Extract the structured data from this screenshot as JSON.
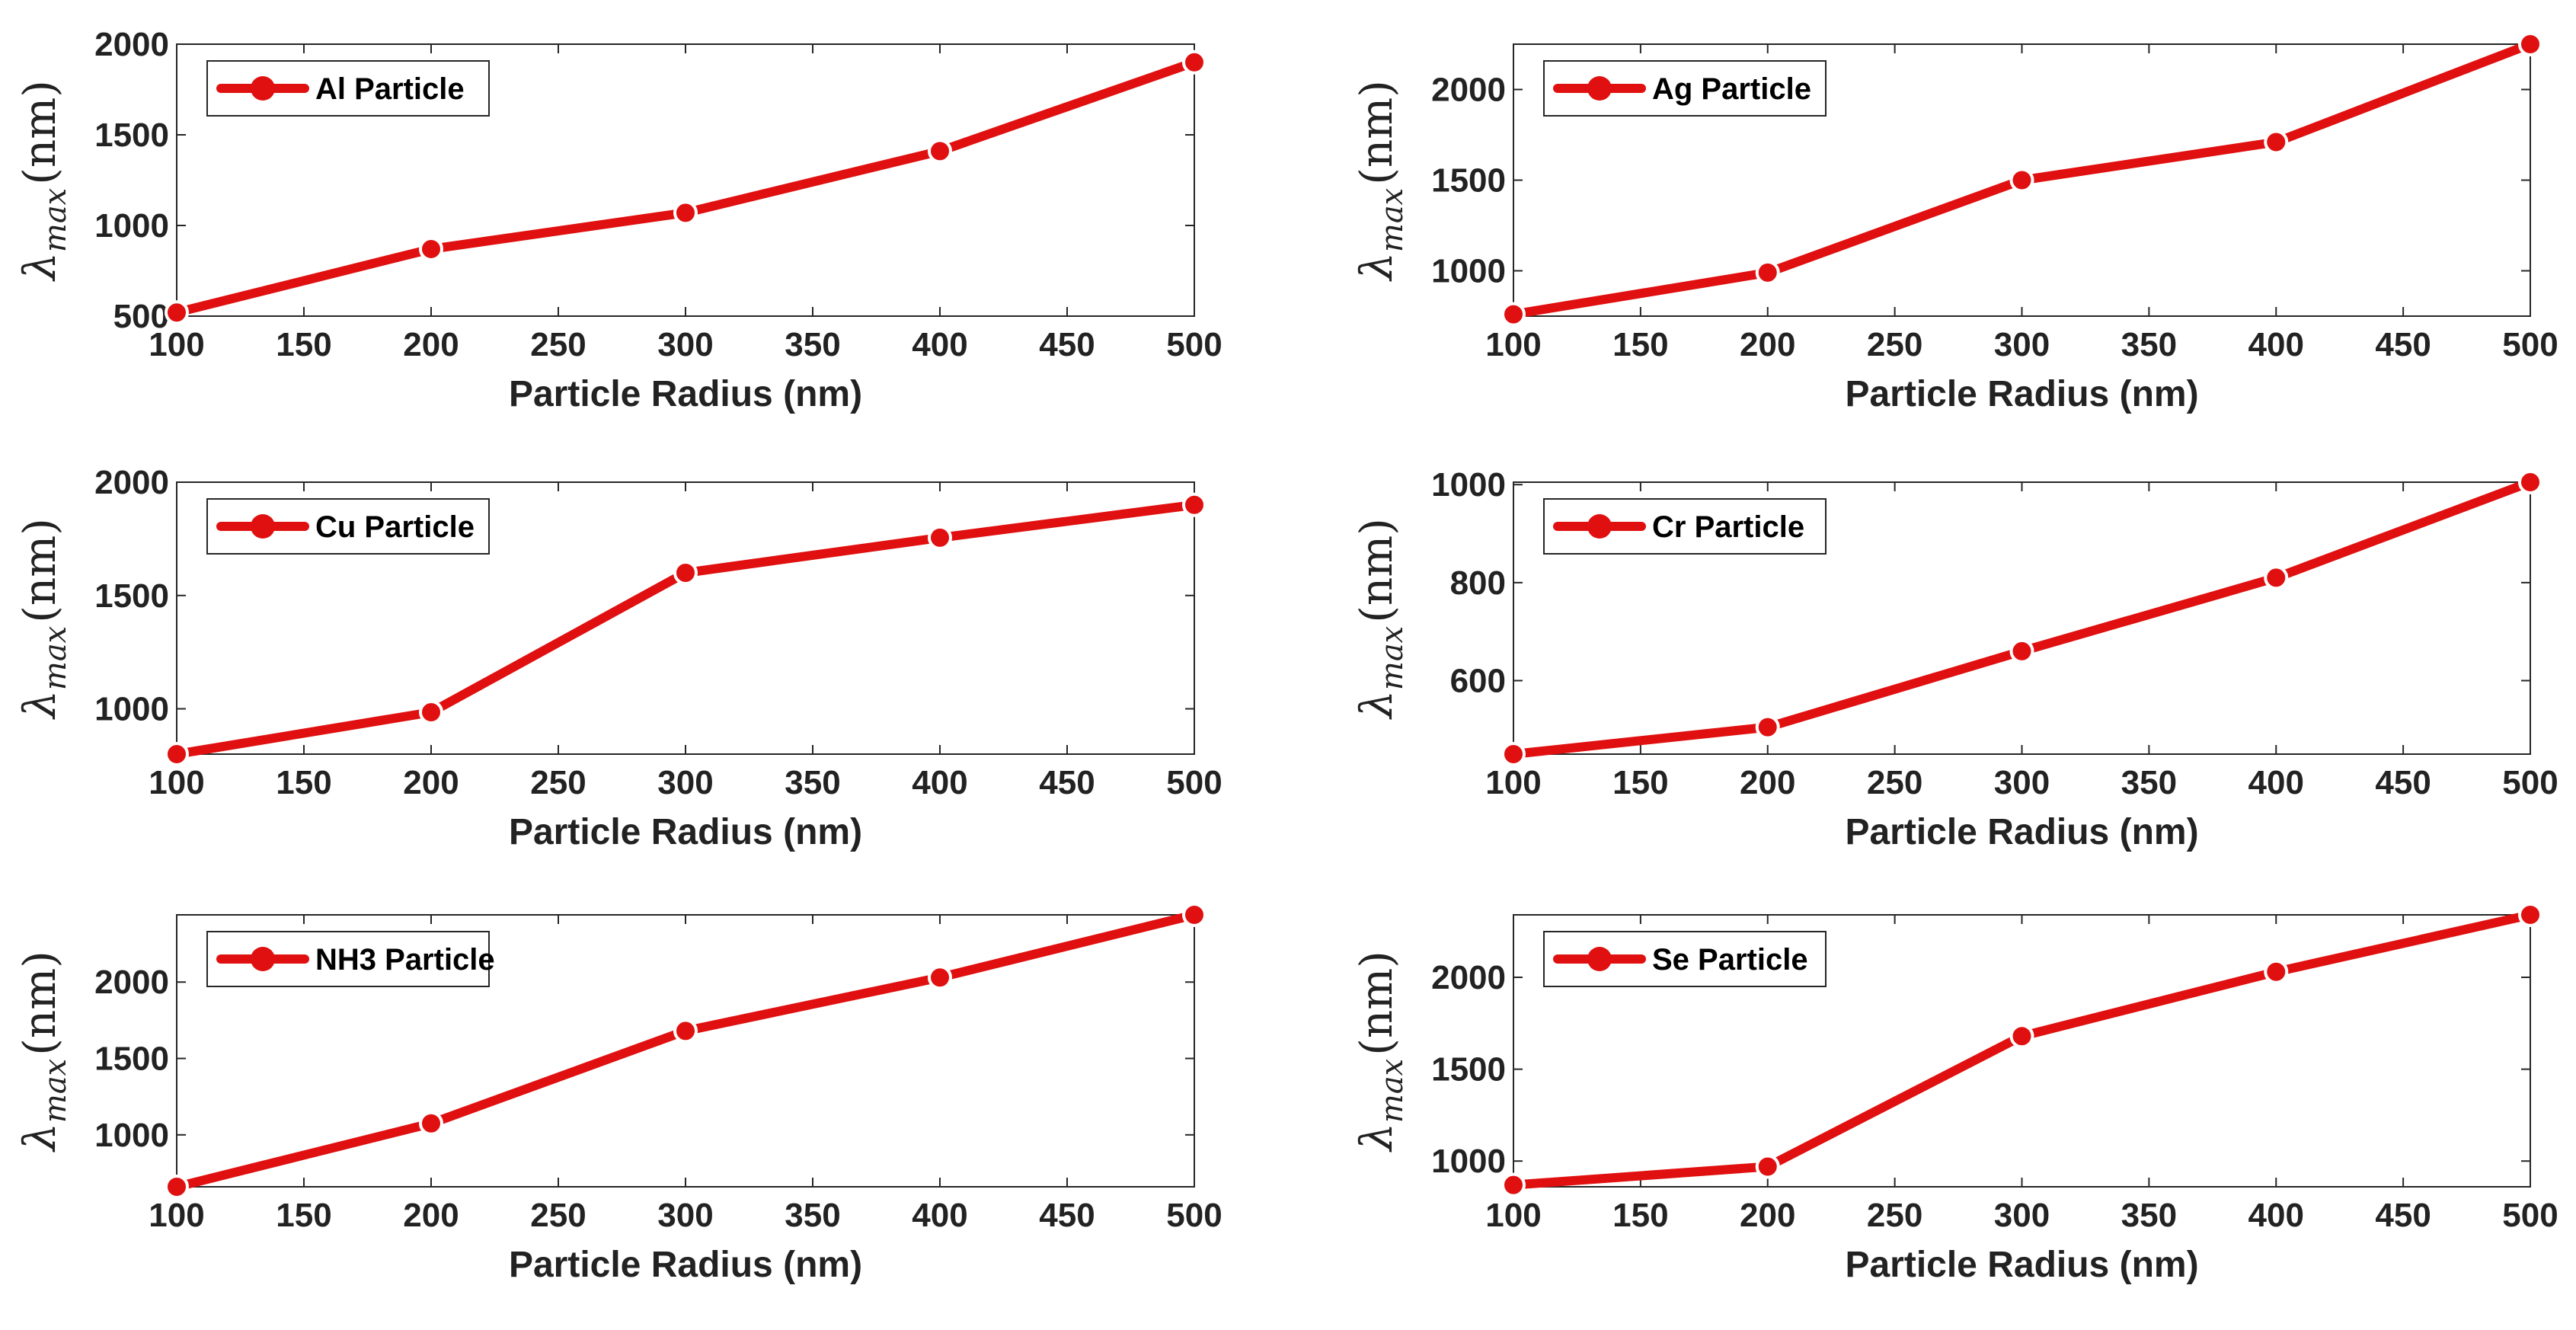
{
  "chart_data": [
    {
      "type": "line",
      "x": [
        100,
        200,
        300,
        400,
        500
      ],
      "xlim": [
        100,
        500
      ],
      "xticks": [
        100,
        150,
        200,
        250,
        300,
        350,
        400,
        450,
        500
      ],
      "ylim": [
        500,
        2000
      ],
      "yticks": [
        500,
        1000,
        1500,
        2000
      ],
      "xlabel": "Particle Radius (nm)",
      "ylabel": {
        "symbol": "λ",
        "subscript": "max",
        "unit": "(nm)"
      },
      "legend_position": "top-left",
      "grid": false,
      "series": [
        {
          "name": "Al Particle",
          "color": "#e01010",
          "values": [
            520,
            870,
            1070,
            1410,
            1900
          ]
        }
      ]
    },
    {
      "type": "line",
      "x": [
        100,
        200,
        300,
        400,
        500
      ],
      "xlim": [
        100,
        500
      ],
      "xticks": [
        100,
        150,
        200,
        250,
        300,
        350,
        400,
        450,
        500
      ],
      "ylim": [
        750,
        2250
      ],
      "yticks": [
        1000,
        1500,
        2000
      ],
      "xlabel": "Particle Radius (nm)",
      "ylabel": {
        "symbol": "λ",
        "subscript": "max",
        "unit": "(nm)"
      },
      "legend_position": "top-left",
      "grid": false,
      "series": [
        {
          "name": "Ag Particle",
          "color": "#e01010",
          "values": [
            760,
            990,
            1500,
            1710,
            2250
          ]
        }
      ]
    },
    {
      "type": "line",
      "x": [
        100,
        200,
        300,
        400,
        500
      ],
      "xlim": [
        100,
        500
      ],
      "xticks": [
        100,
        150,
        200,
        250,
        300,
        350,
        400,
        450,
        500
      ],
      "ylim": [
        800,
        2000
      ],
      "yticks": [
        1000,
        1500,
        2000
      ],
      "xlabel": "Particle Radius (nm)",
      "ylabel": {
        "symbol": "λ",
        "subscript": "max",
        "unit": "(nm)"
      },
      "legend_position": "top-left",
      "grid": false,
      "series": [
        {
          "name": "Cu Particle",
          "color": "#e01010",
          "values": [
            800,
            985,
            1600,
            1755,
            1900
          ]
        }
      ]
    },
    {
      "type": "line",
      "x": [
        100,
        200,
        300,
        400,
        500
      ],
      "xlim": [
        100,
        500
      ],
      "xticks": [
        100,
        150,
        200,
        250,
        300,
        350,
        400,
        450,
        500
      ],
      "ylim": [
        450,
        1005
      ],
      "yticks": [
        600,
        800,
        1000
      ],
      "xlabel": "Particle Radius (nm)",
      "ylabel": {
        "symbol": "λ",
        "subscript": "max",
        "unit": "(nm)"
      },
      "legend_position": "top-left",
      "grid": false,
      "series": [
        {
          "name": "Cr Particle",
          "color": "#e01010",
          "values": [
            450,
            505,
            660,
            810,
            1005
          ]
        }
      ]
    },
    {
      "type": "line",
      "x": [
        100,
        200,
        300,
        400,
        500
      ],
      "xlim": [
        100,
        500
      ],
      "xticks": [
        100,
        150,
        200,
        250,
        300,
        350,
        400,
        450,
        500
      ],
      "ylim": [
        660,
        2440
      ],
      "yticks": [
        1000,
        1500,
        2000
      ],
      "xlabel": "Particle Radius (nm)",
      "ylabel": {
        "symbol": "λ",
        "subscript": "max",
        "unit": "(nm)"
      },
      "legend_position": "top-left",
      "grid": false,
      "series": [
        {
          "name": "NH3 Particle",
          "color": "#e01010",
          "values": [
            660,
            1075,
            1680,
            2030,
            2440
          ]
        }
      ]
    },
    {
      "type": "line",
      "x": [
        100,
        200,
        300,
        400,
        500
      ],
      "xlim": [
        100,
        500
      ],
      "xticks": [
        100,
        150,
        200,
        250,
        300,
        350,
        400,
        450,
        500
      ],
      "ylim": [
        860,
        2340
      ],
      "yticks": [
        1000,
        1500,
        2000
      ],
      "xlabel": "Particle Radius (nm)",
      "ylabel": {
        "symbol": "λ",
        "subscript": "max",
        "unit": "(nm)"
      },
      "legend_position": "top-left",
      "grid": false,
      "series": [
        {
          "name": "Se Particle",
          "color": "#e01010",
          "values": [
            870,
            970,
            1680,
            2030,
            2340
          ]
        }
      ]
    }
  ]
}
